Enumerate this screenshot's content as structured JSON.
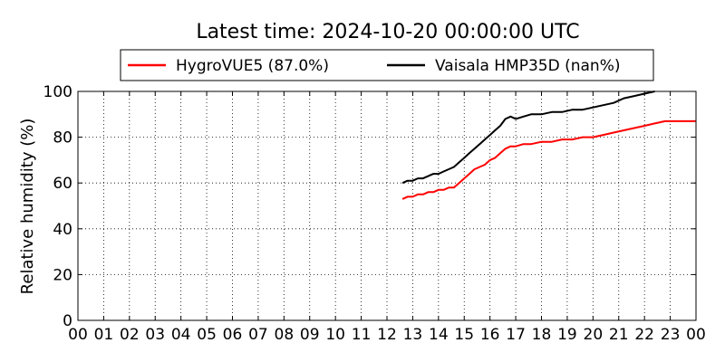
{
  "chart_data": {
    "type": "line",
    "title": "Latest time: 2024-10-20 00:00:00 UTC",
    "xlabel": "",
    "ylabel": "Relative humidity (%)",
    "xlim": [
      0,
      24
    ],
    "ylim": [
      0,
      100
    ],
    "x_tick_labels": [
      "00",
      "01",
      "02",
      "03",
      "04",
      "05",
      "06",
      "07",
      "08",
      "09",
      "10",
      "11",
      "12",
      "13",
      "14",
      "15",
      "16",
      "17",
      "18",
      "19",
      "20",
      "21",
      "22",
      "23",
      "00"
    ],
    "y_ticks": [
      0,
      20,
      40,
      60,
      80,
      100
    ],
    "grid": true,
    "legend_position": "top-center",
    "series": [
      {
        "name": "HygroVUE5 (87.0%)",
        "color": "#ff0000",
        "x": [
          12.6,
          12.8,
          13.0,
          13.2,
          13.4,
          13.6,
          13.8,
          14.0,
          14.2,
          14.4,
          14.6,
          14.8,
          15.0,
          15.2,
          15.4,
          15.6,
          15.8,
          16.0,
          16.2,
          16.4,
          16.6,
          16.8,
          17.0,
          17.3,
          17.6,
          18.0,
          18.4,
          18.8,
          19.2,
          19.6,
          20.0,
          20.4,
          20.8,
          21.2,
          21.6,
          22.0,
          22.4,
          22.8,
          23.2,
          23.6,
          24.0
        ],
        "y": [
          53,
          54,
          54,
          55,
          55,
          56,
          56,
          57,
          57,
          58,
          58,
          60,
          62,
          64,
          66,
          67,
          68,
          70,
          71,
          73,
          75,
          76,
          76,
          77,
          77,
          78,
          78,
          79,
          79,
          80,
          80,
          81,
          82,
          83,
          84,
          85,
          86,
          87,
          87,
          87,
          87
        ]
      },
      {
        "name": "Vaisala HMP35D (nan%)",
        "color": "#000000",
        "x": [
          12.6,
          12.8,
          13.0,
          13.2,
          13.4,
          13.6,
          13.8,
          14.0,
          14.2,
          14.4,
          14.6,
          14.8,
          15.0,
          15.2,
          15.4,
          15.6,
          15.8,
          16.0,
          16.2,
          16.4,
          16.6,
          16.8,
          17.0,
          17.3,
          17.6,
          18.0,
          18.4,
          18.8,
          19.2,
          19.6,
          20.0,
          20.4,
          20.8,
          21.2,
          21.6,
          22.0,
          22.4
        ],
        "y": [
          60,
          61,
          61,
          62,
          62,
          63,
          64,
          64,
          65,
          66,
          67,
          69,
          71,
          73,
          75,
          77,
          79,
          81,
          83,
          85,
          88,
          89,
          88,
          89,
          90,
          90,
          91,
          91,
          92,
          92,
          93,
          94,
          95,
          97,
          98,
          99,
          100
        ]
      }
    ]
  }
}
